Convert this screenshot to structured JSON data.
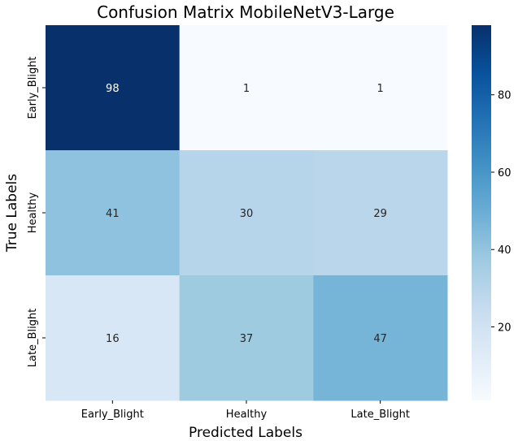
{
  "chart_data": {
    "type": "heatmap",
    "title": "Confusion Matrix MobileNetV3-Large",
    "xlabel": "Predicted Labels",
    "ylabel": "True Labels",
    "x_categories": [
      "Early_Blight",
      "Healthy",
      "Late_Blight"
    ],
    "y_categories": [
      "Early_Blight",
      "Healthy",
      "Late_Blight"
    ],
    "values": [
      [
        98,
        1,
        1
      ],
      [
        41,
        30,
        29
      ],
      [
        16,
        37,
        47
      ]
    ],
    "colormap": "Blues",
    "color_range": [
      1,
      98
    ],
    "colorbar": {
      "ticks": [
        20,
        40,
        60,
        80
      ]
    }
  }
}
